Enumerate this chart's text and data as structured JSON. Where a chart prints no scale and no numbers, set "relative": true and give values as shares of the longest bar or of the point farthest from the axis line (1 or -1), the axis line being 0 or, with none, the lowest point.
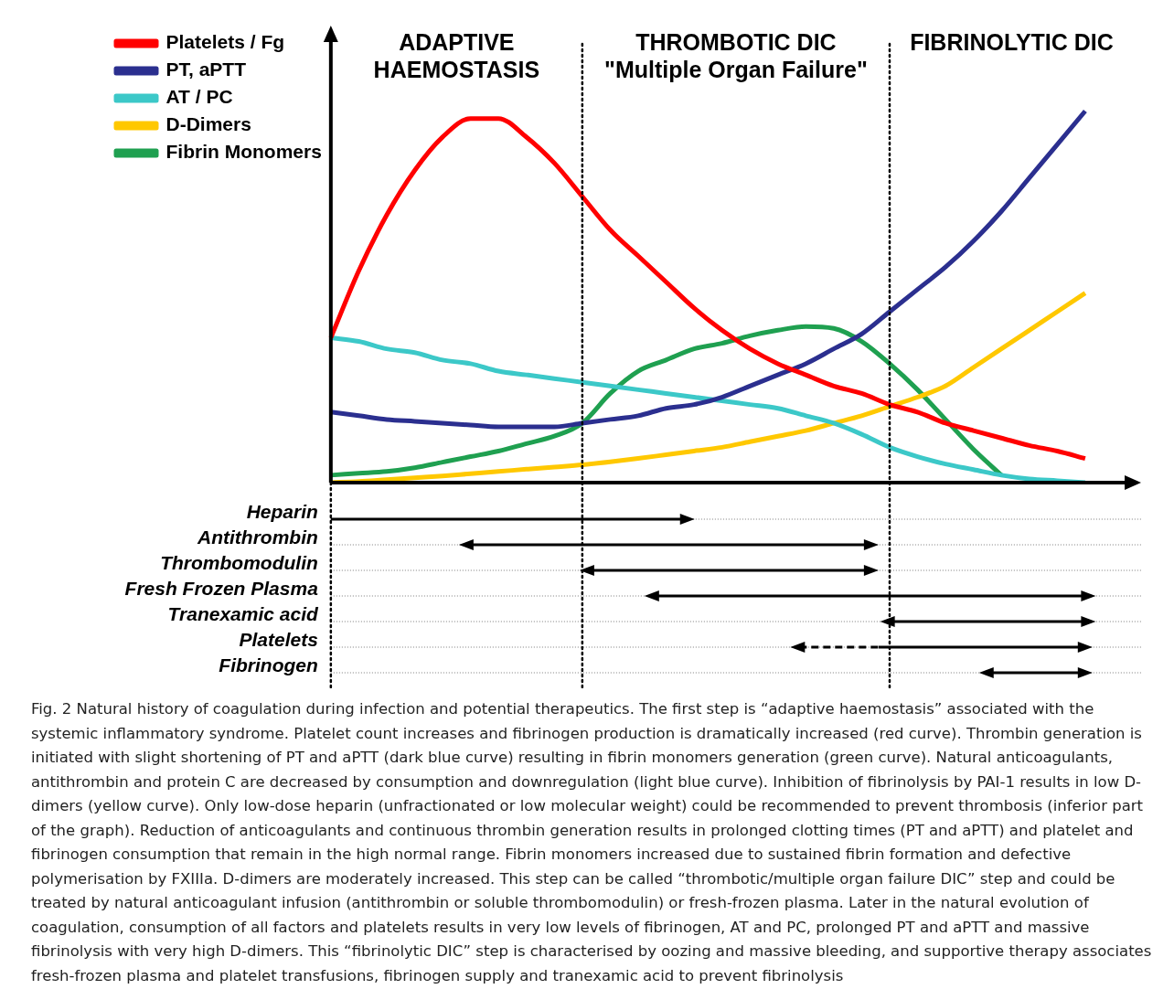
{
  "chart_data": [
    {
      "type": "line",
      "relative": true,
      "categories": [
        null,
        null,
        null,
        null,
        null,
        null,
        null,
        null,
        null,
        null,
        null,
        null,
        null,
        null,
        null,
        null,
        null,
        null,
        null,
        null,
        null,
        null,
        null,
        null,
        null,
        null,
        null,
        null,
        null,
        null
      ],
      "series": [
        {
          "name": "Platelets / Fg",
          "color": "#ff0000",
          "values": [
            0.39,
            0.57,
            0.72,
            0.84,
            0.93,
            0.98,
            0.98,
            0.93,
            0.86,
            0.77,
            0.68,
            0.61,
            0.54,
            0.47,
            0.41,
            0.36,
            0.32,
            0.29,
            0.26,
            0.24,
            0.21,
            0.19,
            0.16,
            0.14,
            0.12,
            0.1,
            0.085,
            0.065,
            null,
            null
          ]
        },
        {
          "name": "PT, aPTT",
          "color": "#2b2f8f",
          "values": [
            0.19,
            0.18,
            0.17,
            0.165,
            0.16,
            0.155,
            0.15,
            0.15,
            0.15,
            0.16,
            0.17,
            0.18,
            0.2,
            0.21,
            0.23,
            0.26,
            0.29,
            0.32,
            0.36,
            0.4,
            0.46,
            0.52,
            0.58,
            0.65,
            0.73,
            0.82,
            0.91,
            1,
            null,
            null
          ]
        },
        {
          "name": "AT / PC",
          "color": "#3cc8c8",
          "values": [
            0.39,
            0.38,
            0.36,
            0.35,
            0.33,
            0.32,
            0.3,
            0.29,
            0.28,
            0.27,
            0.26,
            0.25,
            0.24,
            0.23,
            0.22,
            0.21,
            0.2,
            0.18,
            0.16,
            0.13,
            0.095,
            0.07,
            0.05,
            0.035,
            0.02,
            0.01,
            0.005,
            0,
            null,
            null
          ]
        },
        {
          "name": "D-Dimers",
          "color": "#ffc800",
          "values": [
            0,
            0.003,
            0.008,
            0.013,
            0.018,
            0.024,
            0.03,
            0.036,
            0.042,
            0.048,
            0.056,
            0.065,
            0.075,
            0.085,
            0.095,
            0.11,
            0.125,
            0.14,
            0.16,
            0.18,
            0.205,
            0.23,
            0.26,
            0.31,
            0.36,
            0.41,
            0.46,
            0.51,
            null,
            null
          ]
        },
        {
          "name": "Fibrin Monomers",
          "color": "#1fa050",
          "values": [
            0.02,
            0.025,
            0.03,
            0.04,
            0.055,
            0.07,
            0.085,
            0.105,
            0.125,
            0.16,
            0.24,
            0.3,
            0.33,
            0.36,
            0.375,
            0.395,
            0.41,
            0.42,
            0.415,
            0.38,
            0.32,
            0.25,
            0.17,
            0.09,
            0.02,
            null,
            null,
            null,
            null,
            null
          ]
        }
      ],
      "annotations": [
        "ADAPTIVE\nHAEMOSTASIS",
        "THROMBOTIC DIC\n\"Multiple Organ Failure\"",
        "FIBRINOLYTIC DIC"
      ],
      "legend": "top left",
      "marker": "none",
      "line_style": "solid",
      "grid": false,
      "tick_labels": false
    },
    {
      "type": "other",
      "categories": [
        "Heparin",
        "Antithrombin",
        "Thrombomodulin",
        "Fresh Frozen Plasma",
        "Tranexamic acid",
        "Platelets",
        "Fibrinogen"
      ],
      "annotations": [
        "Fig. 2 Natural history of coagulation during infection and potential therapeutics. The first step is “adaptive haemostasis” associated with the systemic inflammatory syndrome. Platelet count increases and fibrinogen production is dramatically increased (red curve). Thrombin generation is initiated with slight shortening of PT and aPTT (dark blue curve) resulting in fibrin monomers generation (green curve). Natural anticoagulants, antithrombin and protein C are decreased by consumption and downregulation (light blue curve). Inhibition of fibrinolysis by PAI-1 results in low D-dimers (yellow curve). Only low-dose heparin (unfractionated or low molecular weight) could be recommended to prevent thrombosis (inferior part of the graph). Reduction of anticoagulants and continuous thrombin generation results in prolonged clotting times (PT and aPTT) and platelet and fibrinogen consumption that remain in the high normal range. Fibrin monomers increased due to sustained fibrin formation and defective polymerisation by FXIIIa. D-dimers are moderately increased. This step can be called “thrombotic/multiple organ failure DIC” step and could be treated by natural anticoagulant infusion (antithrombin or soluble thrombomodulin) or fresh-frozen plasma. Later in the natural evolution of coagulation, consumption of all factors and platelets results in very low levels of fibrinogen, AT and PC, prolonged PT and aPTT and massive fibrinolysis with very high D-dimers. This “fibrinolytic DIC” step is characterised by oozing and massive bleeding, and supportive therapy associates fresh-frozen plasma and platelet transfusions, fibrinogen supply and tranexamic acid to prevent fibrinolysis"
      ]
    }
  ]
}
